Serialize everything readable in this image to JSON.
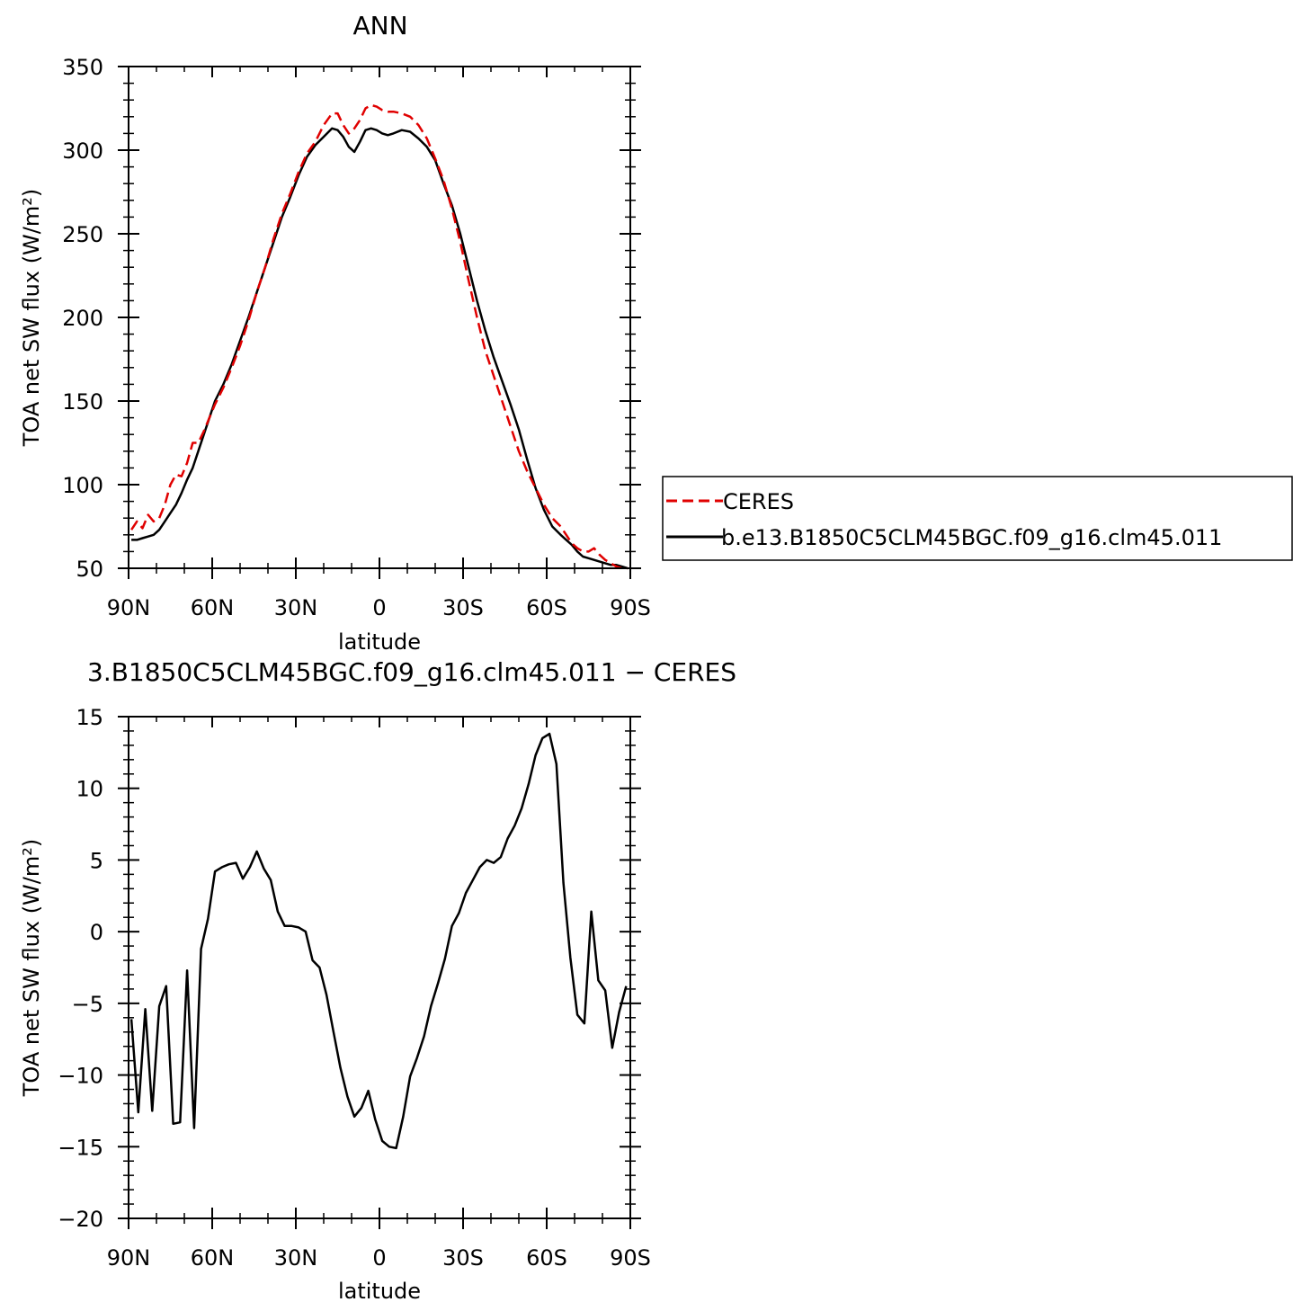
{
  "chart_data": [
    {
      "type": "line",
      "title": "ANN",
      "xlabel": "latitude",
      "ylabel": "TOA net SW flux (W/m²)",
      "xlim": [
        90,
        -90
      ],
      "ylim": [
        50,
        350
      ],
      "xticks": [
        90,
        60,
        30,
        0,
        -30,
        -60,
        -90
      ],
      "xtick_labels": [
        "90N",
        "60N",
        "30N",
        "0",
        "30S",
        "60S",
        "90S"
      ],
      "yticks": [
        50,
        100,
        150,
        200,
        250,
        300,
        350
      ],
      "ytick_labels": [
        "50",
        "100",
        "150",
        "200",
        "250",
        "300",
        "350"
      ],
      "legend": {
        "position": "right"
      },
      "series": [
        {
          "name": "CERES",
          "color": "#e00000",
          "style": "dashed",
          "x": [
            89,
            87,
            85,
            83,
            81,
            79,
            77,
            75,
            73,
            71,
            69,
            67,
            65,
            63,
            61,
            59,
            56,
            53,
            50,
            47,
            44,
            41,
            38,
            35,
            32,
            29,
            26,
            23,
            20,
            17,
            15,
            13,
            11,
            9,
            7,
            5,
            3,
            1,
            -1,
            -3,
            -5,
            -8,
            -11,
            -14,
            -17,
            -20,
            -23,
            -26,
            -29,
            -32,
            -35,
            -38,
            -41,
            -44,
            -47,
            -50,
            -53,
            -56,
            -59,
            -62,
            -65,
            -67,
            -69,
            -71,
            -73,
            -75,
            -77,
            -79,
            -81,
            -83,
            -85,
            -87,
            -89
          ],
          "y": [
            73,
            78,
            74,
            82,
            78,
            80,
            88,
            100,
            106,
            105,
            113,
            125,
            125,
            132,
            140,
            148,
            158,
            170,
            183,
            198,
            215,
            230,
            247,
            262,
            274,
            287,
            298,
            305,
            315,
            322,
            322,
            315,
            310,
            313,
            318,
            325,
            327,
            326,
            324,
            323,
            323,
            322,
            320,
            315,
            307,
            295,
            282,
            265,
            245,
            222,
            200,
            180,
            165,
            150,
            135,
            120,
            108,
            98,
            88,
            80,
            75,
            70,
            65,
            62,
            60,
            60,
            62,
            58,
            55,
            53,
            51,
            50,
            50
          ]
        },
        {
          "name": "b.e13.B1850C5CLM45BGC.f09_g16.clm45.011",
          "color": "#000000",
          "style": "solid",
          "x": [
            89,
            87,
            85,
            83,
            81,
            79,
            77,
            75,
            73,
            71,
            69,
            67,
            65,
            63,
            61,
            59,
            56,
            53,
            50,
            47,
            44,
            41,
            38,
            35,
            32,
            29,
            26,
            23,
            20,
            17,
            15,
            13,
            11,
            9,
            7,
            5,
            3,
            1,
            -1,
            -3,
            -5,
            -8,
            -11,
            -14,
            -17,
            -20,
            -23,
            -26,
            -29,
            -32,
            -35,
            -38,
            -41,
            -44,
            -47,
            -50,
            -53,
            -56,
            -59,
            -62,
            -65,
            -67,
            -69,
            -71,
            -73,
            -75,
            -77,
            -79,
            -81,
            -83,
            -85,
            -87,
            -89
          ],
          "y": [
            67,
            67,
            68,
            69,
            70,
            73,
            78,
            83,
            88,
            95,
            103,
            110,
            120,
            130,
            140,
            150,
            160,
            172,
            186,
            200,
            215,
            230,
            245,
            260,
            272,
            285,
            296,
            303,
            308,
            313,
            312,
            308,
            302,
            299,
            305,
            312,
            313,
            312,
            310,
            309,
            310,
            312,
            311,
            307,
            302,
            294,
            280,
            267,
            250,
            230,
            210,
            192,
            176,
            162,
            148,
            133,
            115,
            98,
            85,
            75,
            70,
            67,
            64,
            60,
            57,
            56,
            55,
            54,
            53,
            52,
            52,
            51,
            50
          ]
        }
      ]
    },
    {
      "type": "line",
      "title": "3.B1850C5CLM45BGC.f09_g16.clm45.011  −  CERES",
      "xlabel": "latitude",
      "ylabel": "TOA net SW flux (W/m²)",
      "xlim": [
        90,
        -90
      ],
      "ylim": [
        -20,
        15
      ],
      "xticks": [
        90,
        60,
        30,
        0,
        -30,
        -60,
        -90
      ],
      "xtick_labels": [
        "90N",
        "60N",
        "30N",
        "0",
        "30S",
        "60S",
        "90S"
      ],
      "yticks": [
        -20,
        -15,
        -10,
        -5,
        0,
        5,
        10,
        15
      ],
      "ytick_labels": [
        "−20",
        "−15",
        "−10",
        "−5",
        "0",
        "5",
        "10",
        "15"
      ],
      "series": [
        {
          "color": "#000000",
          "style": "solid",
          "x": [
            89,
            86.5,
            84,
            81.5,
            79,
            76.5,
            74,
            71.5,
            69,
            66.5,
            64,
            61.5,
            59,
            56.5,
            54,
            51.5,
            49,
            46.5,
            44,
            41.5,
            39,
            36.5,
            34,
            31.5,
            29,
            26.5,
            24,
            21.5,
            19,
            16.5,
            14,
            11.5,
            9,
            6.5,
            4,
            1.5,
            -1,
            -3.5,
            -6,
            -8.5,
            -11,
            -13.5,
            -16,
            -18.5,
            -21,
            -23.5,
            -26,
            -28.5,
            -31,
            -33.5,
            -36,
            -38.5,
            -41,
            -43.5,
            -46,
            -48.5,
            -51,
            -53.5,
            -56,
            -58.5,
            -61,
            -63.5,
            -66,
            -68.5,
            -71,
            -73.5,
            -76,
            -78.5,
            -81,
            -83.5,
            -86,
            -88.5
          ],
          "y": [
            -6.1,
            -12.6,
            -5.4,
            -12.5,
            -5.2,
            -3.8,
            -13.4,
            -13.3,
            -2.7,
            -13.7,
            -1.2,
            0.9,
            4.2,
            4.5,
            4.7,
            4.8,
            3.7,
            4.5,
            5.6,
            4.4,
            3.6,
            1.4,
            0.4,
            0.4,
            0.3,
            0.0,
            -2.0,
            -2.5,
            -4.4,
            -7.0,
            -9.5,
            -11.5,
            -12.9,
            -12.3,
            -11.1,
            -13.1,
            -14.6,
            -15.0,
            -15.1,
            -12.9,
            -10.1,
            -8.8,
            -7.3,
            -5.2,
            -3.6,
            -1.9,
            0.4,
            1.3,
            2.7,
            3.6,
            4.5,
            5.0,
            4.8,
            5.2,
            6.5,
            7.4,
            8.6,
            10.3,
            12.3,
            13.5,
            13.8,
            11.7,
            3.4,
            -1.8,
            -5.8,
            -6.4,
            1.4,
            -3.4,
            -4.1,
            -8.1,
            -5.6,
            -3.8
          ]
        }
      ]
    }
  ]
}
